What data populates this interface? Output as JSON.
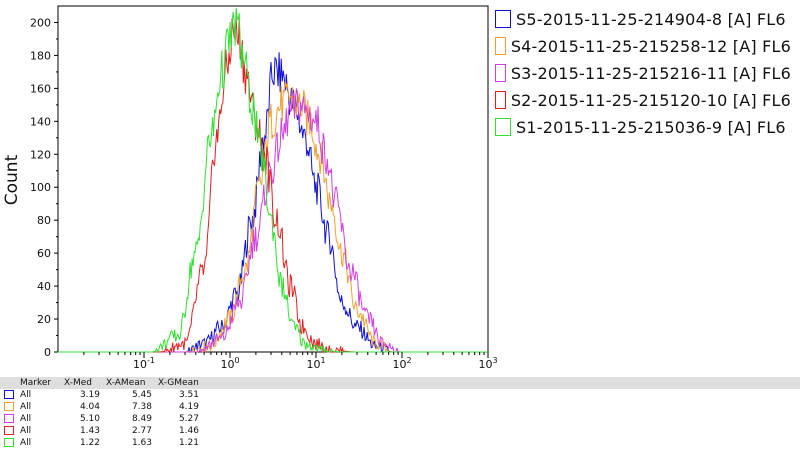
{
  "chart_data": {
    "type": "line",
    "title": "",
    "xlabel": "",
    "ylabel": "Count",
    "x_scale": "log",
    "xlim": [
      0.01,
      1000
    ],
    "ylim": [
      0,
      210
    ],
    "x_ticks": [
      {
        "value": 0.1,
        "base": "10",
        "exp": "-1"
      },
      {
        "value": 1,
        "base": "10",
        "exp": "0"
      },
      {
        "value": 10,
        "base": "10",
        "exp": "1"
      },
      {
        "value": 100,
        "base": "10",
        "exp": "2"
      },
      {
        "value": 1000,
        "base": "10",
        "exp": "3"
      }
    ],
    "y_ticks": [
      "0",
      "20",
      "40",
      "60",
      "80",
      "100",
      "120",
      "140",
      "160",
      "180",
      "200"
    ],
    "legend_position": "right",
    "series": [
      {
        "name": "S5-2015-11-25-214904-8 [A] FL6",
        "color": "#1010d0",
        "x": [
          0.3,
          0.5,
          0.8,
          1.2,
          1.8,
          2.5,
          3.2,
          4.0,
          5.5,
          7.5,
          10,
          14,
          20,
          30,
          50,
          80
        ],
        "y": [
          0,
          5,
          15,
          35,
          80,
          130,
          170,
          168,
          150,
          130,
          100,
          70,
          30,
          15,
          3,
          0
        ]
      },
      {
        "name": "S4-2015-11-25-215258-12 [A] FL6",
        "color": "#f0a030",
        "x": [
          0.3,
          0.6,
          1.0,
          1.5,
          2.2,
          3.0,
          4.0,
          5.0,
          6.5,
          8.5,
          11,
          15,
          20,
          30,
          50,
          80
        ],
        "y": [
          0,
          4,
          20,
          50,
          100,
          140,
          150,
          155,
          150,
          140,
          120,
          90,
          60,
          25,
          5,
          0
        ]
      },
      {
        "name": "S3-2015-11-25-215216-11 [A] FL6",
        "color": "#d040e0",
        "x": [
          0.4,
          0.8,
          1.3,
          2.0,
          3.0,
          4.0,
          5.0,
          6.5,
          8.0,
          10,
          13,
          17,
          25,
          40,
          60,
          100
        ],
        "y": [
          0,
          8,
          30,
          70,
          110,
          130,
          145,
          150,
          145,
          140,
          120,
          90,
          50,
          20,
          5,
          0
        ]
      },
      {
        "name": "S2-2015-11-25-215120-10 [A] FL6",
        "color": "#e02020",
        "x": [
          0.15,
          0.3,
          0.5,
          0.7,
          0.9,
          1.1,
          1.3,
          1.5,
          2.0,
          2.5,
          3.5,
          5,
          7,
          10,
          15,
          30
        ],
        "y": [
          0,
          5,
          50,
          130,
          170,
          195,
          190,
          170,
          140,
          120,
          80,
          40,
          15,
          5,
          1,
          0
        ]
      },
      {
        "name": "S1-2015-11-25-215036-9 [A] FL6",
        "color": "#30e030",
        "x": [
          0.12,
          0.25,
          0.4,
          0.6,
          0.8,
          1.0,
          1.2,
          1.4,
          1.8,
          2.3,
          3.0,
          4.0,
          5.5,
          7.5,
          12,
          20
        ],
        "y": [
          0,
          10,
          60,
          130,
          170,
          190,
          200,
          180,
          150,
          120,
          80,
          40,
          15,
          5,
          1,
          0
        ]
      }
    ]
  },
  "stats_table": {
    "headers": {
      "marker": "Marker",
      "xmed": "X-Med",
      "xamean": "X-AMean",
      "xgmean": "X-GMean"
    },
    "rows": [
      {
        "marker": "All",
        "xmed": "3.19",
        "xamean": "5.45",
        "xgmean": "3.51",
        "color": "#1010d0"
      },
      {
        "marker": "All",
        "xmed": "4.04",
        "xamean": "7.38",
        "xgmean": "4.19",
        "color": "#f0a030"
      },
      {
        "marker": "All",
        "xmed": "5.10",
        "xamean": "8.49",
        "xgmean": "5.27",
        "color": "#d040e0"
      },
      {
        "marker": "All",
        "xmed": "1.43",
        "xamean": "2.77",
        "xgmean": "1.46",
        "color": "#e02020"
      },
      {
        "marker": "All",
        "xmed": "1.22",
        "xamean": "1.63",
        "xgmean": "1.21",
        "color": "#30e030"
      }
    ]
  }
}
